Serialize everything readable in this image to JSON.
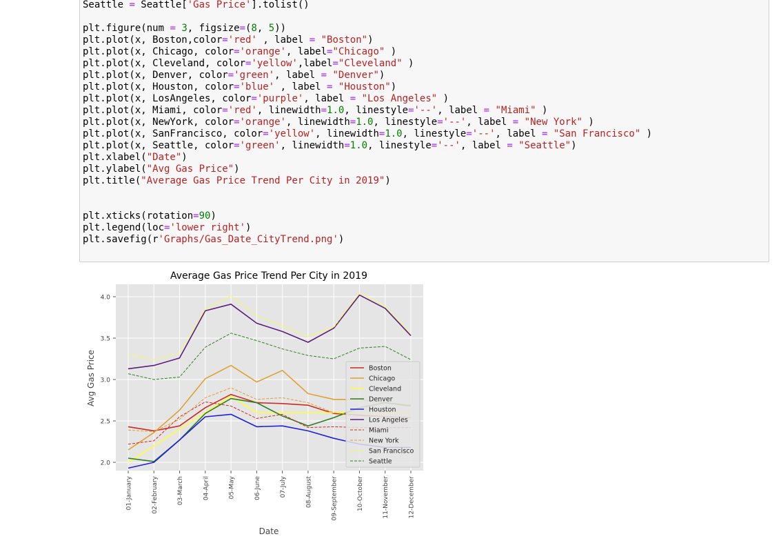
{
  "code_cell": {
    "lines": [
      [
        [
          "t",
          "Seattle "
        ],
        [
          "o",
          "="
        ],
        [
          "t",
          " Seattle["
        ],
        [
          "s",
          "'Gas Price'"
        ],
        [
          "t",
          "].tolist()"
        ]
      ],
      [],
      [
        [
          "t",
          "plt.figure(num "
        ],
        [
          "o",
          "="
        ],
        [
          "t",
          " "
        ],
        [
          "n",
          "3"
        ],
        [
          "t",
          ", figsize"
        ],
        [
          "o",
          "="
        ],
        [
          "t",
          "("
        ],
        [
          "n",
          "8"
        ],
        [
          "t",
          ", "
        ],
        [
          "n",
          "5"
        ],
        [
          "t",
          "))"
        ]
      ],
      [
        [
          "t",
          "plt.plot(x, Boston,color"
        ],
        [
          "o",
          "="
        ],
        [
          "s",
          "'red'"
        ],
        [
          "t",
          " , label "
        ],
        [
          "o",
          "="
        ],
        [
          "t",
          " "
        ],
        [
          "s",
          "\"Boston\""
        ],
        [
          "t",
          ")"
        ]
      ],
      [
        [
          "t",
          "plt.plot(x, Chicago, color"
        ],
        [
          "o",
          "="
        ],
        [
          "s",
          "'orange'"
        ],
        [
          "t",
          ", label"
        ],
        [
          "o",
          "="
        ],
        [
          "s",
          "\"Chicago\""
        ],
        [
          "t",
          " )"
        ]
      ],
      [
        [
          "t",
          "plt.plot(x, Cleveland, color"
        ],
        [
          "o",
          "="
        ],
        [
          "s",
          "'yellow'"
        ],
        [
          "t",
          ",label"
        ],
        [
          "o",
          "="
        ],
        [
          "s",
          "\"Cleveland\""
        ],
        [
          "t",
          " )"
        ]
      ],
      [
        [
          "t",
          "plt.plot(x, Denver, color"
        ],
        [
          "o",
          "="
        ],
        [
          "s",
          "'green'"
        ],
        [
          "t",
          ", label "
        ],
        [
          "o",
          "="
        ],
        [
          "t",
          " "
        ],
        [
          "s",
          "\"Denver\""
        ],
        [
          "t",
          ")"
        ]
      ],
      [
        [
          "t",
          "plt.plot(x, Houston, color"
        ],
        [
          "o",
          "="
        ],
        [
          "s",
          "'blue'"
        ],
        [
          "t",
          " , label "
        ],
        [
          "o",
          "="
        ],
        [
          "t",
          " "
        ],
        [
          "s",
          "\"Houston\""
        ],
        [
          "t",
          ")"
        ]
      ],
      [
        [
          "t",
          "plt.plot(x, LosAngeles, color"
        ],
        [
          "o",
          "="
        ],
        [
          "s",
          "'purple'"
        ],
        [
          "t",
          ", label "
        ],
        [
          "o",
          "="
        ],
        [
          "t",
          " "
        ],
        [
          "s",
          "\"Los Angeles\""
        ],
        [
          "t",
          " )"
        ]
      ],
      [
        [
          "t",
          "plt.plot(x, Miami, color"
        ],
        [
          "o",
          "="
        ],
        [
          "s",
          "'red'"
        ],
        [
          "t",
          ", linewidth"
        ],
        [
          "o",
          "="
        ],
        [
          "n",
          "1.0"
        ],
        [
          "t",
          ", linestyle"
        ],
        [
          "o",
          "="
        ],
        [
          "s",
          "'--'"
        ],
        [
          "t",
          ", label "
        ],
        [
          "o",
          "="
        ],
        [
          "t",
          " "
        ],
        [
          "s",
          "\"Miami\""
        ],
        [
          "t",
          " )"
        ]
      ],
      [
        [
          "t",
          "plt.plot(x, NewYork, color"
        ],
        [
          "o",
          "="
        ],
        [
          "s",
          "'orange'"
        ],
        [
          "t",
          ", linewidth"
        ],
        [
          "o",
          "="
        ],
        [
          "n",
          "1.0"
        ],
        [
          "t",
          ", linestyle"
        ],
        [
          "o",
          "="
        ],
        [
          "s",
          "'--'"
        ],
        [
          "t",
          ", label "
        ],
        [
          "o",
          "="
        ],
        [
          "t",
          " "
        ],
        [
          "s",
          "\"New York\""
        ],
        [
          "t",
          " )"
        ]
      ],
      [
        [
          "t",
          "plt.plot(x, SanFrancisco, color"
        ],
        [
          "o",
          "="
        ],
        [
          "s",
          "'yellow'"
        ],
        [
          "t",
          ", linewidth"
        ],
        [
          "o",
          "="
        ],
        [
          "n",
          "1.0"
        ],
        [
          "t",
          ", linestyle"
        ],
        [
          "o",
          "="
        ],
        [
          "s",
          "'--'"
        ],
        [
          "t",
          ", label "
        ],
        [
          "o",
          "="
        ],
        [
          "t",
          " "
        ],
        [
          "s",
          "\"San Francisco\""
        ],
        [
          "t",
          " )"
        ]
      ],
      [
        [
          "t",
          "plt.plot(x, Seattle, color"
        ],
        [
          "o",
          "="
        ],
        [
          "s",
          "'green'"
        ],
        [
          "t",
          ", linewidth"
        ],
        [
          "o",
          "="
        ],
        [
          "n",
          "1.0"
        ],
        [
          "t",
          ", linestyle"
        ],
        [
          "o",
          "="
        ],
        [
          "s",
          "'--'"
        ],
        [
          "t",
          ", label "
        ],
        [
          "o",
          "="
        ],
        [
          "t",
          " "
        ],
        [
          "s",
          "\"Seattle\""
        ],
        [
          "t",
          ")"
        ]
      ],
      [
        [
          "t",
          "plt.xlabel("
        ],
        [
          "s",
          "\"Date\""
        ],
        [
          "t",
          ")"
        ]
      ],
      [
        [
          "t",
          "plt.ylabel("
        ],
        [
          "s",
          "\"Avg Gas Price\""
        ],
        [
          "t",
          ")"
        ]
      ],
      [
        [
          "t",
          "plt.title("
        ],
        [
          "s",
          "\"Average Gas Price Trend Per City in 2019\""
        ],
        [
          "t",
          ")"
        ]
      ],
      [],
      [],
      [
        [
          "t",
          "plt.xticks(rotation"
        ],
        [
          "o",
          "="
        ],
        [
          "n",
          "90"
        ],
        [
          "t",
          ")"
        ]
      ],
      [
        [
          "t",
          "plt.legend(loc"
        ],
        [
          "o",
          "="
        ],
        [
          "s",
          "'lower right'"
        ],
        [
          "t",
          ")"
        ]
      ],
      [
        [
          "t",
          "plt.savefig(r"
        ],
        [
          "s",
          "'Graphs/Gas_Date_CityTrend.png'"
        ],
        [
          "t",
          ")"
        ]
      ]
    ]
  },
  "colors": {
    "string": "#ba2121",
    "number": "#008000",
    "operator": "#aa22ff",
    "plot_bg": "#e5e5e5",
    "grid": "#ffffff"
  },
  "chart_data": {
    "type": "line",
    "title": "Average Gas Price Trend Per City in 2019",
    "xlabel": "Date",
    "ylabel": "Avg Gas Price",
    "categories": [
      "01-January",
      "02-February",
      "03-March",
      "04-April",
      "05-May",
      "06-June",
      "07-July",
      "08-August",
      "09-September",
      "10-October",
      "11-November",
      "12-December"
    ],
    "ylim": [
      1.9,
      4.15
    ],
    "yticks": [
      "2.0",
      "2.5",
      "3.0",
      "3.5",
      "4.0"
    ],
    "grid": true,
    "legend_position": "lower-right",
    "series": [
      {
        "name": "Boston",
        "color": "#cc2a1f",
        "style": "solid",
        "values": [
          2.43,
          2.38,
          2.44,
          2.66,
          2.82,
          2.72,
          2.71,
          2.69,
          2.59,
          2.57,
          2.55,
          2.54
        ]
      },
      {
        "name": "Chicago",
        "color": "#e0a030",
        "style": "solid",
        "values": [
          2.15,
          2.36,
          2.63,
          3.01,
          3.17,
          2.97,
          3.11,
          2.83,
          2.76,
          2.76,
          2.72,
          2.69
        ]
      },
      {
        "name": "Cleveland",
        "color": "#ffff33",
        "style": "solid",
        "values": [
          2.0,
          2.2,
          2.4,
          2.6,
          2.8,
          2.6,
          2.6,
          2.6,
          2.6,
          2.6,
          2.6,
          2.6
        ]
      },
      {
        "name": "Denver",
        "color": "#2e7d1f",
        "style": "solid",
        "values": [
          2.05,
          2.01,
          2.27,
          2.59,
          2.77,
          2.72,
          2.56,
          2.44,
          2.54,
          2.66,
          2.72,
          2.68
        ]
      },
      {
        "name": "Houston",
        "color": "#1f1fdd",
        "style": "solid",
        "values": [
          1.93,
          2.0,
          2.27,
          2.55,
          2.58,
          2.43,
          2.44,
          2.38,
          2.29,
          2.22,
          2.18,
          2.18
        ]
      },
      {
        "name": "Los Angeles",
        "color": "#5a1f78",
        "style": "solid",
        "values": [
          3.13,
          3.17,
          3.26,
          3.83,
          3.91,
          3.68,
          3.58,
          3.45,
          3.62,
          4.02,
          3.86,
          3.53
        ]
      },
      {
        "name": "Miami",
        "color": "#cc2a1f",
        "style": "dashed",
        "values": [
          2.22,
          2.26,
          2.55,
          2.73,
          2.68,
          2.53,
          2.58,
          2.42,
          2.43,
          2.42,
          2.42,
          2.42
        ]
      },
      {
        "name": "New York",
        "color": "#e0a030",
        "style": "dashed",
        "values": [
          2.39,
          2.37,
          2.52,
          2.78,
          2.9,
          2.76,
          2.78,
          2.72,
          2.6,
          2.56,
          2.55,
          2.54
        ]
      },
      {
        "name": "San Francisco",
        "color": "#ffff33",
        "style": "dashed",
        "values": [
          3.3,
          3.24,
          3.32,
          3.85,
          4.01,
          3.77,
          3.65,
          3.52,
          3.63,
          4.05,
          3.89,
          3.55
        ]
      },
      {
        "name": "Seattle",
        "color": "#2e7d1f",
        "style": "dashed",
        "values": [
          3.07,
          3.0,
          3.03,
          3.39,
          3.56,
          3.47,
          3.37,
          3.29,
          3.25,
          3.38,
          3.4,
          3.24
        ]
      }
    ]
  }
}
